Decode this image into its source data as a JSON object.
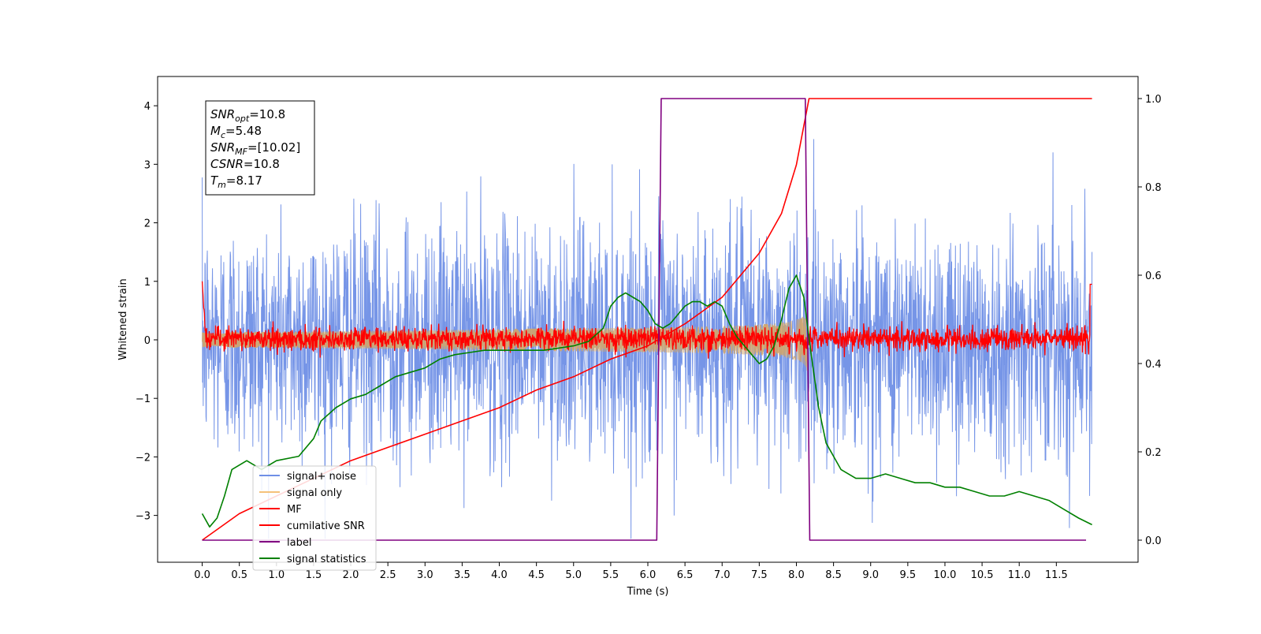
{
  "chart_data": {
    "type": "line",
    "xlabel": "Time (s)",
    "ylabel": "Whitened strain",
    "xlim": [
      -0.6,
      12.6
    ],
    "ylim": [
      -3.8,
      4.5
    ],
    "ylim_right": [
      -0.05,
      1.05
    ],
    "x_ticks": [
      "0.0",
      "0.5",
      "1.0",
      "1.5",
      "2.0",
      "2.5",
      "3.0",
      "3.5",
      "4.0",
      "4.5",
      "5.0",
      "5.5",
      "6.0",
      "6.5",
      "7.0",
      "7.5",
      "8.0",
      "8.5",
      "9.0",
      "9.5",
      "10.0",
      "10.5",
      "11.0",
      "11.5"
    ],
    "x_tick_values": [
      0,
      0.5,
      1,
      1.5,
      2,
      2.5,
      3,
      3.5,
      4,
      4.5,
      5,
      5.5,
      6,
      6.5,
      7,
      7.5,
      8,
      8.5,
      9,
      9.5,
      10,
      10.5,
      11,
      11.5
    ],
    "y_ticks": [
      "−3",
      "−2",
      "−1",
      "0",
      "1",
      "2",
      "3",
      "4"
    ],
    "y_tick_values": [
      -3,
      -2,
      -1,
      0,
      1,
      2,
      3,
      4
    ],
    "y_right_ticks": [
      "0.0",
      "0.2",
      "0.4",
      "0.6",
      "0.8",
      "1.0"
    ],
    "y_right_tick_values": [
      0,
      0.2,
      0.4,
      0.6,
      0.8,
      1.0
    ],
    "annotation": {
      "lines": [
        {
          "base": "SNR",
          "sub": "opt",
          "rest": "=10.8"
        },
        {
          "base": "M",
          "sub": "c",
          "rest": "=5.48"
        },
        {
          "base": "SNR",
          "sub": "MF",
          "rest": "=[10.02]"
        },
        {
          "base": "CSNR",
          "sub": "",
          "rest": "=10.8"
        },
        {
          "base": "T",
          "sub": "m",
          "rest": "=8.17"
        }
      ]
    },
    "legend": {
      "placement": "lower-left",
      "entries": [
        {
          "label": "signal+ noise",
          "color": "#6f8fe6"
        },
        {
          "label": "signal only",
          "color": "#f5c27a"
        },
        {
          "label": "MF",
          "color": "#ff0000"
        },
        {
          "label": "cumilative SNR",
          "color": "#ff0000"
        },
        {
          "label": "label",
          "color": "#800080"
        },
        {
          "label": "signal statistics",
          "color": "#008000"
        }
      ]
    },
    "series": [
      {
        "name": "signal+ noise",
        "axis": "left",
        "color": "#6f8fe6",
        "kind": "noise",
        "sigma": 1.0,
        "x_range": [
          0,
          11.98
        ]
      },
      {
        "name": "signal only",
        "axis": "left",
        "color": "#d2a56a",
        "kind": "chirp",
        "x_range": [
          0,
          8.17
        ],
        "amplitude_end": 0.55
      },
      {
        "name": "MF",
        "axis": "left",
        "color": "#ff0000",
        "kind": "noise",
        "sigma": 0.1,
        "x_range": [
          0,
          11.98
        ],
        "start_value": 1.0,
        "end_value": 0.95
      },
      {
        "name": "cumilative SNR",
        "axis": "right",
        "color": "#ff0000",
        "x": [
          0,
          0.5,
          1,
          1.5,
          2,
          2.5,
          3,
          3.5,
          4,
          4.5,
          5,
          5.5,
          6,
          6.5,
          7,
          7.5,
          7.8,
          8.0,
          8.17,
          11.98
        ],
        "y": [
          0.0,
          0.06,
          0.1,
          0.14,
          0.18,
          0.21,
          0.24,
          0.27,
          0.3,
          0.34,
          0.37,
          0.41,
          0.44,
          0.49,
          0.55,
          0.65,
          0.74,
          0.85,
          1.0,
          1.0
        ]
      },
      {
        "name": "label",
        "axis": "right",
        "color": "#800080",
        "x": [
          0,
          6.12,
          6.18,
          8.12,
          8.18,
          11.9
        ],
        "y": [
          0,
          0,
          1,
          1,
          0,
          0
        ]
      },
      {
        "name": "signal statistics",
        "axis": "right",
        "color": "#008000",
        "x": [
          0,
          0.1,
          0.2,
          0.3,
          0.4,
          0.6,
          0.8,
          1.0,
          1.3,
          1.5,
          1.6,
          1.8,
          2.0,
          2.2,
          2.4,
          2.6,
          2.8,
          3.0,
          3.2,
          3.4,
          3.6,
          3.8,
          4.0,
          4.2,
          4.4,
          4.6,
          4.8,
          5.0,
          5.2,
          5.4,
          5.5,
          5.6,
          5.7,
          5.8,
          5.9,
          6.0,
          6.1,
          6.2,
          6.3,
          6.4,
          6.5,
          6.6,
          6.7,
          6.8,
          6.9,
          7.0,
          7.1,
          7.2,
          7.3,
          7.4,
          7.5,
          7.6,
          7.7,
          7.8,
          7.9,
          8.0,
          8.1,
          8.2,
          8.3,
          8.4,
          8.6,
          8.8,
          9.0,
          9.2,
          9.4,
          9.6,
          9.8,
          10.0,
          10.2,
          10.4,
          10.6,
          10.8,
          11.0,
          11.2,
          11.4,
          11.6,
          11.8,
          11.98
        ],
        "y": [
          0.06,
          0.03,
          0.05,
          0.1,
          0.16,
          0.18,
          0.16,
          0.18,
          0.19,
          0.23,
          0.27,
          0.3,
          0.32,
          0.33,
          0.35,
          0.37,
          0.38,
          0.39,
          0.41,
          0.42,
          0.425,
          0.43,
          0.43,
          0.43,
          0.43,
          0.43,
          0.435,
          0.44,
          0.45,
          0.48,
          0.53,
          0.55,
          0.56,
          0.55,
          0.54,
          0.52,
          0.49,
          0.48,
          0.49,
          0.51,
          0.53,
          0.54,
          0.54,
          0.53,
          0.54,
          0.53,
          0.49,
          0.46,
          0.44,
          0.42,
          0.4,
          0.41,
          0.44,
          0.5,
          0.57,
          0.6,
          0.55,
          0.42,
          0.3,
          0.22,
          0.16,
          0.14,
          0.14,
          0.15,
          0.14,
          0.13,
          0.13,
          0.12,
          0.12,
          0.11,
          0.1,
          0.1,
          0.11,
          0.1,
          0.09,
          0.07,
          0.05,
          0.035
        ]
      }
    ]
  }
}
